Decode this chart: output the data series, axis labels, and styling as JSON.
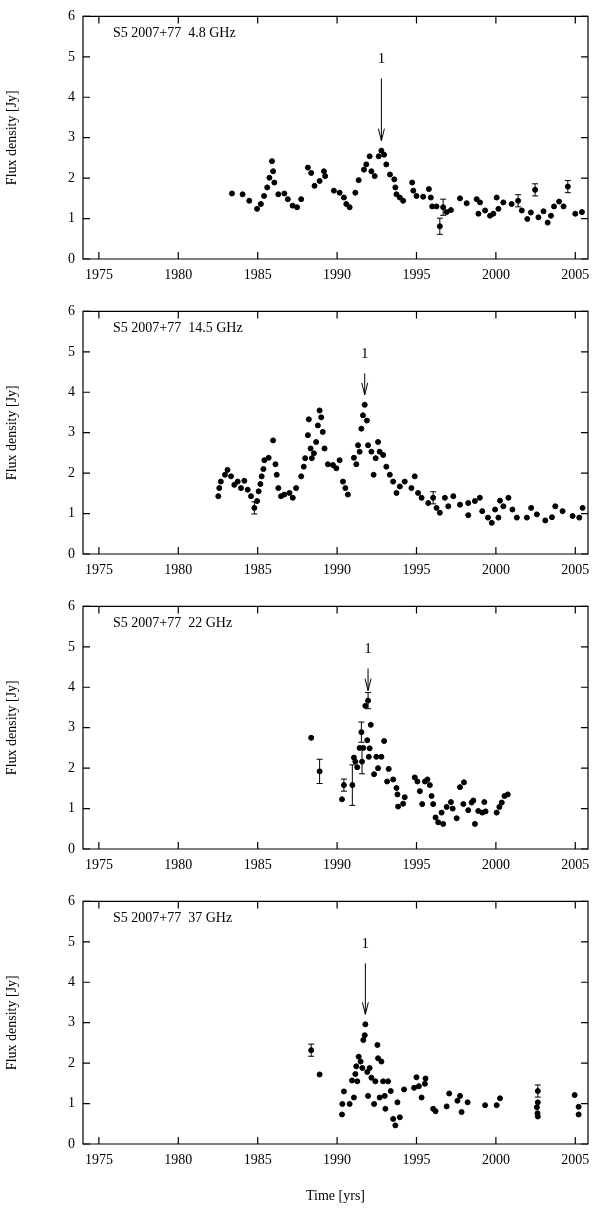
{
  "chart_data": [
    {
      "type": "scatter",
      "title": "S5 2007+77  4.8 GHz",
      "ylabel": "Flux density [Jy]",
      "color": "#000000",
      "marker": "circle",
      "xlim": [
        1974,
        2005.8
      ],
      "ylim": [
        0,
        6
      ],
      "xticks": [
        1975,
        1980,
        1985,
        1990,
        1995,
        2000,
        2005
      ],
      "yticks": [
        0,
        1,
        2,
        3,
        4,
        5,
        6
      ],
      "annotations": [
        "1"
      ],
      "x": [
        1983.38,
        1984.05,
        1984.47,
        1984.96,
        1985.2,
        1985.4,
        1985.6,
        1985.74,
        1985.9,
        1985.97,
        1986.05,
        1986.3,
        1986.68,
        1986.9,
        1987.2,
        1987.48,
        1987.74,
        1988.16,
        1988.37,
        1988.58,
        1988.9,
        1989.17,
        1989.25,
        1989.8,
        1990.16,
        1990.43,
        1990.58,
        1990.79,
        1991.15,
        1991.36,
        1991.69,
        1991.84,
        1992.05,
        1992.16,
        1992.37,
        1992.62,
        1992.79,
        1992.96,
        1993.1,
        1993.33,
        1993.6,
        1993.67,
        1993.74,
        1993.95,
        1994.16,
        1994.73,
        1994.8,
        1995.0,
        1995.42,
        1995.78,
        1995.9,
        1995.99,
        1996.26,
        1996.47,
        1996.68,
        1996.9,
        1997.17,
        1997.74,
        1998.16,
        1998.79,
        1998.9,
        1999.0,
        1999.32,
        1999.63,
        1999.84,
        2000.05,
        2000.16,
        2000.47,
        2000.99,
        2001.4,
        2001.63,
        2001.98,
        2002.2,
        2002.47,
        2002.68,
        2003.0,
        2003.26,
        2003.47,
        2003.66,
        2003.98,
        2004.26,
        2004.53,
        2005.0,
        2005.42
      ],
      "values": [
        1.62,
        1.6,
        1.44,
        1.24,
        1.36,
        1.56,
        1.77,
        2.01,
        2.42,
        2.17,
        1.89,
        1.6,
        1.62,
        1.48,
        1.32,
        1.28,
        1.48,
        2.26,
        2.13,
        1.81,
        1.93,
        2.17,
        2.05,
        1.69,
        1.64,
        1.52,
        1.36,
        1.28,
        1.64,
        1.95,
        2.21,
        2.34,
        2.54,
        2.17,
        2.05,
        2.54,
        2.68,
        2.58,
        2.34,
        2.09,
        1.97,
        1.77,
        1.6,
        1.52,
        1.44,
        1.89,
        1.69,
        1.56,
        1.54,
        1.73,
        1.52,
        1.3,
        1.3,
        0.81,
        1.28,
        1.16,
        1.21,
        1.5,
        1.38,
        1.48,
        1.12,
        1.4,
        1.2,
        1.07,
        1.12,
        1.52,
        1.24,
        1.4,
        1.36,
        1.44,
        1.2,
        0.99,
        1.15,
        1.71,
        1.03,
        1.18,
        0.9,
        1.07,
        1.3,
        1.42,
        1.3,
        1.79,
        1.12,
        1.16
      ],
      "errors": [
        null,
        null,
        null,
        null,
        null,
        null,
        null,
        null,
        null,
        null,
        null,
        null,
        null,
        null,
        null,
        null,
        null,
        null,
        null,
        null,
        null,
        null,
        null,
        null,
        null,
        null,
        null,
        null,
        null,
        null,
        null,
        null,
        null,
        null,
        null,
        null,
        null,
        null,
        null,
        null,
        null,
        null,
        null,
        null,
        null,
        null,
        null,
        null,
        null,
        null,
        null,
        null,
        null,
        0.2,
        0.2,
        null,
        null,
        null,
        null,
        null,
        null,
        null,
        null,
        null,
        null,
        null,
        null,
        null,
        null,
        0.15,
        null,
        null,
        null,
        0.15,
        null,
        null,
        null,
        null,
        null,
        null,
        null,
        0.15,
        null,
        null
      ]
    },
    {
      "type": "scatter",
      "title": "S5 2007+77  14.5 GHz",
      "ylabel": "Flux density [Jy]",
      "color": "#000000",
      "marker": "circle",
      "xlim": [
        1974,
        2005.8
      ],
      "ylim": [
        0,
        6
      ],
      "xticks": [
        1975,
        1980,
        1985,
        1990,
        1995,
        2000,
        2005
      ],
      "yticks": [
        0,
        1,
        2,
        3,
        4,
        5,
        6
      ],
      "annotations": [
        "1"
      ],
      "x": [
        1982.52,
        1982.58,
        1982.68,
        1982.94,
        1983.1,
        1983.32,
        1983.53,
        1983.74,
        1983.95,
        1984.16,
        1984.37,
        1984.58,
        1984.79,
        1984.96,
        1985.06,
        1985.17,
        1985.25,
        1985.36,
        1985.42,
        1985.69,
        1985.97,
        1986.12,
        1986.2,
        1986.3,
        1986.47,
        1986.68,
        1987.0,
        1987.21,
        1987.42,
        1987.74,
        1987.9,
        1987.99,
        1988.16,
        1988.22,
        1988.33,
        1988.41,
        1988.54,
        1988.68,
        1988.79,
        1988.9,
        1989.0,
        1989.1,
        1989.21,
        1989.42,
        1989.74,
        1989.95,
        1990.16,
        1990.37,
        1990.52,
        1990.68,
        1991.06,
        1991.21,
        1991.32,
        1991.42,
        1991.53,
        1991.63,
        1991.74,
        1991.88,
        1991.95,
        1992.16,
        1992.3,
        1992.43,
        1992.58,
        1992.68,
        1992.9,
        1993.1,
        1993.32,
        1993.53,
        1993.74,
        1993.95,
        1994.26,
        1994.68,
        1994.89,
        1995.1,
        1995.32,
        1995.74,
        1996.05,
        1996.26,
        1996.47,
        1996.79,
        1997.0,
        1997.32,
        1997.74,
        1998.26,
        1998.26,
        1998.68,
        1998.99,
        1999.14,
        1999.5,
        1999.74,
        1999.95,
        2000.16,
        2000.26,
        2000.47,
        2000.79,
        2001.04,
        2001.32,
        2001.95,
        2002.22,
        2002.58,
        2003.11,
        2003.53,
        2003.74,
        2004.2,
        2004.83,
        2005.25,
        2005.46
      ],
      "values": [
        1.43,
        1.63,
        1.79,
        1.96,
        2.08,
        1.92,
        1.71,
        1.79,
        1.63,
        1.81,
        1.59,
        1.43,
        1.14,
        1.31,
        1.55,
        1.73,
        1.92,
        2.1,
        2.32,
        2.38,
        2.81,
        2.22,
        1.96,
        1.63,
        1.43,
        1.47,
        1.51,
        1.39,
        1.63,
        1.92,
        2.16,
        2.37,
        2.94,
        3.33,
        2.61,
        2.37,
        2.49,
        2.77,
        3.18,
        3.55,
        3.38,
        3.02,
        2.61,
        2.22,
        2.2,
        2.12,
        2.32,
        1.79,
        1.63,
        1.47,
        2.38,
        2.22,
        2.69,
        2.53,
        3.1,
        3.43,
        3.69,
        3.3,
        2.69,
        2.53,
        1.96,
        2.37,
        2.77,
        2.53,
        2.45,
        2.16,
        1.96,
        1.79,
        1.51,
        1.67,
        1.79,
        1.63,
        1.92,
        1.51,
        1.39,
        1.26,
        1.39,
        1.14,
        1.02,
        1.39,
        1.18,
        1.43,
        1.22,
        1.26,
        0.96,
        1.31,
        1.39,
        1.06,
        0.9,
        0.77,
        1.1,
        0.9,
        1.32,
        1.18,
        1.39,
        1.1,
        0.9,
        0.9,
        1.14,
        0.98,
        0.83,
        0.91,
        1.18,
        1.06,
        0.94,
        0.9,
        1.14
      ],
      "errors": [
        null,
        null,
        null,
        null,
        null,
        null,
        null,
        null,
        null,
        null,
        null,
        null,
        0.15,
        null,
        null,
        null,
        null,
        null,
        null,
        null,
        null,
        null,
        null,
        null,
        null,
        null,
        null,
        null,
        null,
        null,
        null,
        null,
        null,
        null,
        null,
        null,
        null,
        null,
        null,
        null,
        null,
        null,
        null,
        null,
        null,
        null,
        null,
        null,
        null,
        null,
        null,
        null,
        null,
        null,
        null,
        null,
        null,
        null,
        null,
        null,
        null,
        null,
        null,
        null,
        null,
        null,
        null,
        null,
        null,
        null,
        null,
        null,
        null,
        null,
        null,
        null,
        0.15,
        null,
        null,
        null,
        null,
        null,
        null,
        null,
        null,
        null,
        null,
        null,
        null,
        null,
        null,
        null,
        null,
        null,
        null,
        null,
        null,
        null,
        null,
        null,
        null,
        null,
        null,
        null,
        null,
        null,
        null
      ]
    },
    {
      "type": "scatter",
      "title": "S5 2007+77  22 GHz",
      "ylabel": "Flux density [Jy]",
      "color": "#000000",
      "marker": "circle",
      "xlim": [
        1974,
        2005.8
      ],
      "ylim": [
        0,
        6
      ],
      "xticks": [
        1975,
        1980,
        1985,
        1990,
        1995,
        2000,
        2005
      ],
      "yticks": [
        0,
        1,
        2,
        3,
        4,
        5,
        6
      ],
      "annotations": [
        {
          "text": "1",
          "x": 1991.95,
          "y": 3.67
        }
      ],
      "x": [
        1988.37,
        1988.9,
        1990.31,
        1990.43,
        1990.96,
        1991.06,
        1991.15,
        1991.27,
        1991.42,
        1991.53,
        1991.57,
        1991.65,
        1991.78,
        1991.9,
        1991.95,
        1992.0,
        1992.05,
        1992.12,
        1992.33,
        1992.47,
        1992.58,
        1992.79,
        1992.96,
        1993.15,
        1993.25,
        1993.53,
        1993.74,
        1993.8,
        1993.84,
        1994.16,
        1994.26,
        1994.89,
        1995.06,
        1995.21,
        1995.36,
        1995.53,
        1995.69,
        1995.84,
        1995.95,
        1996.05,
        1996.2,
        1996.37,
        1996.58,
        1996.68,
        1996.9,
        1997.17,
        1997.28,
        1997.53,
        1997.74,
        1997.95,
        1997.99,
        1998.26,
        1998.47,
        1998.58,
        1998.68,
        1998.89,
        1999.14,
        1999.27,
        1999.35,
        2000.05,
        2000.22,
        2000.37,
        2000.54,
        2000.75
      ],
      "values": [
        2.75,
        1.92,
        1.23,
        1.58,
        1.58,
        2.26,
        2.16,
        2.02,
        2.5,
        2.89,
        2.16,
        2.5,
        3.54,
        2.69,
        3.67,
        2.28,
        2.49,
        3.07,
        1.85,
        2.28,
        2.0,
        2.28,
        2.67,
        1.67,
        1.98,
        1.72,
        1.51,
        1.35,
        1.05,
        1.12,
        1.28,
        1.77,
        1.67,
        1.43,
        1.11,
        1.67,
        1.72,
        1.58,
        1.31,
        1.11,
        0.78,
        0.66,
        0.9,
        0.62,
        1.04,
        1.16,
        1.0,
        0.76,
        1.53,
        1.11,
        1.65,
        0.96,
        1.15,
        1.2,
        0.62,
        0.94,
        0.9,
        1.16,
        0.93,
        0.9,
        1.04,
        1.15,
        1.31,
        1.35
      ],
      "errors": [
        null,
        0.3,
        null,
        0.15,
        0.5,
        null,
        null,
        null,
        null,
        0.25,
        0.3,
        null,
        null,
        null,
        0.2,
        null,
        null,
        null,
        null,
        null,
        null,
        null,
        null,
        null,
        null,
        null,
        null,
        null,
        null,
        null,
        null,
        null,
        null,
        null,
        null,
        null,
        null,
        null,
        null,
        null,
        null,
        null,
        null,
        null,
        null,
        null,
        null,
        null,
        null,
        null,
        null,
        null,
        null,
        null,
        null,
        null,
        null,
        null,
        null,
        null,
        null,
        null,
        null,
        null
      ]
    },
    {
      "type": "scatter",
      "title": "S5 2007+77  37 GHz",
      "xlabel": "Time [yrs]",
      "ylabel": "Flux density [Jy]",
      "color": "#000000",
      "marker": "circle",
      "xlim": [
        1974,
        2005.8
      ],
      "ylim": [
        0,
        6
      ],
      "xticks": [
        1975,
        1980,
        1985,
        1990,
        1995,
        2000,
        2005
      ],
      "yticks": [
        0,
        1,
        2,
        3,
        4,
        5,
        6
      ],
      "annotations": [
        "1"
      ],
      "x": [
        1988.37,
        1988.9,
        1990.31,
        1990.33,
        1990.43,
        1990.79,
        1990.94,
        1991.06,
        1991.15,
        1991.21,
        1991.27,
        1991.36,
        1991.48,
        1991.59,
        1991.65,
        1991.74,
        1991.78,
        1991.9,
        1991.95,
        1992.05,
        1992.16,
        1992.33,
        1992.41,
        1992.54,
        1992.58,
        1992.68,
        1992.79,
        1992.9,
        1993.0,
        1993.04,
        1993.21,
        1993.38,
        1993.53,
        1993.67,
        1993.8,
        1993.95,
        1994.22,
        1994.85,
        1995.0,
        1995.15,
        1995.32,
        1995.53,
        1995.57,
        1996.05,
        1996.2,
        1996.9,
        1997.06,
        1997.58,
        1997.74,
        1997.84,
        1998.22,
        1999.32,
        2000.05,
        2000.26,
        2002.58,
        2002.62,
        2002.64,
        2002.64,
        2002.64,
        2004.96,
        2005.21,
        2005.21
      ],
      "values": [
        2.32,
        1.72,
        0.73,
        0.99,
        1.3,
        0.99,
        1.57,
        1.15,
        1.73,
        1.92,
        1.55,
        2.16,
        2.04,
        1.88,
        2.57,
        2.69,
        2.96,
        1.78,
        1.19,
        1.88,
        1.64,
        0.99,
        1.55,
        2.45,
        2.12,
        1.15,
        2.04,
        1.55,
        1.19,
        0.87,
        1.55,
        1.31,
        0.62,
        0.46,
        1.03,
        0.66,
        1.35,
        1.39,
        1.65,
        1.43,
        1.15,
        1.49,
        1.62,
        0.87,
        0.81,
        0.93,
        1.25,
        1.07,
        1.19,
        0.79,
        1.03,
        0.96,
        0.96,
        1.13,
        0.91,
        0.76,
        0.68,
        1.03,
        1.31,
        1.21,
        0.92,
        0.73
      ],
      "errors": [
        0.15,
        null,
        null,
        null,
        null,
        null,
        null,
        null,
        null,
        null,
        null,
        null,
        null,
        null,
        null,
        null,
        null,
        null,
        null,
        null,
        null,
        null,
        null,
        null,
        null,
        null,
        null,
        null,
        null,
        null,
        null,
        null,
        null,
        null,
        null,
        null,
        null,
        null,
        null,
        null,
        null,
        null,
        null,
        null,
        null,
        null,
        null,
        null,
        null,
        null,
        null,
        null,
        null,
        null,
        null,
        null,
        null,
        null,
        0.15,
        null,
        null,
        null
      ]
    }
  ]
}
